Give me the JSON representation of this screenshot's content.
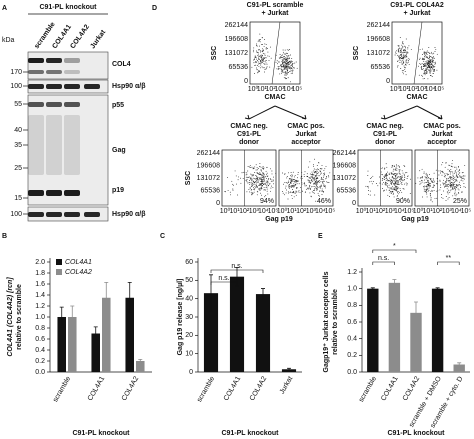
{
  "panel_a": {
    "letter": "A",
    "title": "C91-PL knockout",
    "kda": "kDa",
    "lanes": [
      "scramble",
      "COL4A1",
      "COL4A2",
      "Jurkat"
    ],
    "markers": [
      170,
      100,
      55,
      40,
      35,
      25,
      15,
      100
    ],
    "bands": [
      "COL4",
      "Hsp90 α/β",
      "p55",
      "Gag",
      "p19",
      "Hsp90 α/β"
    ]
  },
  "panel_d": {
    "letter": "D",
    "plots": [
      {
        "title": [
          "C91-PL scramble",
          "+ Jurkat"
        ],
        "percents": [
          "94%",
          "46%"
        ]
      },
      {
        "title": [
          "C91-PL COL4A2",
          "+ Jurkat"
        ],
        "percents": [
          "90%",
          "25%"
        ]
      }
    ],
    "gates": [
      [
        "CMAC neg.",
        "C91-PL",
        "donor"
      ],
      [
        "CMAC pos.",
        "Jurkat",
        "acceptor"
      ]
    ],
    "y_label": "SSC",
    "x_label_top": "CMAC",
    "x_label_bottom": "Gag p19",
    "yticks": [
      262144,
      196608,
      131072,
      65536,
      0
    ],
    "xticks": [
      "10⁰",
      "10¹",
      "10²",
      "10³",
      "10⁴",
      "10⁵"
    ]
  },
  "chart_data": [
    {
      "type": "bar",
      "letter": "B",
      "y_label": [
        "COL4A1 (COL4A2) [rcn]",
        "relative to scramble"
      ],
      "x_label": "C91-PL knockout",
      "categories": [
        "scramble",
        "COL4A1",
        "COL4A2"
      ],
      "series": [
        {
          "name": "COL4A1",
          "color": "#111111",
          "values": [
            1.0,
            0.7,
            1.35
          ],
          "errors": [
            0.18,
            0.12,
            0.28
          ]
        },
        {
          "name": "COL4A2",
          "color": "#8c8c8c",
          "values": [
            1.0,
            1.35,
            0.2
          ],
          "errors": [
            0.2,
            0.28,
            0.03
          ]
        }
      ],
      "ylim": [
        0,
        2
      ],
      "yticks": [
        {
          "value": 0,
          "label": "0.0"
        },
        0.2,
        0.4,
        0.6,
        0.8,
        {
          "value": 1,
          "label": "1.0"
        },
        1.2,
        1.4,
        1.6,
        1.8,
        {
          "value": 2,
          "label": "2.0"
        }
      ],
      "legend": "top-left"
    },
    {
      "type": "bar",
      "letter": "C",
      "y_label": [
        "Gag p19 release [ng/µl]"
      ],
      "x_label": "C91-PL knockout",
      "categories": [
        "scramble",
        "COL4A1",
        "COL4A2",
        "Jurkat"
      ],
      "series": [
        {
          "color": "#111111",
          "values": [
            43,
            52,
            42.5,
            1.5
          ],
          "errors": [
            10,
            5,
            3,
            0.5
          ]
        }
      ],
      "ylim": [
        0,
        60
      ],
      "yticks": [
        0,
        10,
        20,
        30,
        40,
        50,
        60
      ],
      "annotations": [
        "n.s.",
        "n.s."
      ]
    },
    {
      "type": "bar",
      "letter": "E",
      "y_label": [
        "Gagp19⁺ Jurkat acceptor cells",
        "relative to scramble"
      ],
      "x_label": "C91-PL knockout",
      "categories": [
        "scramble",
        "COL4A1",
        "COL4A2",
        "scramble + DMSO",
        "scramble + cyto. D"
      ],
      "series": [
        {
          "colors": [
            "#111111",
            "#8c8c8c",
            "#8c8c8c",
            "#111111",
            "#8c8c8c"
          ],
          "values": [
            1.0,
            1.07,
            0.71,
            1.0,
            0.09
          ],
          "errors": [
            0.01,
            0.04,
            0.13,
            0.01,
            0.02
          ]
        }
      ],
      "ylim": [
        0,
        1.2
      ],
      "yticks": [
        {
          "value": 0,
          "label": "0.0"
        },
        0.2,
        0.4,
        0.6,
        0.8,
        {
          "value": 1,
          "label": "1.0"
        },
        1.2
      ],
      "annotations": [
        "*",
        "n.s.",
        "**"
      ]
    }
  ]
}
